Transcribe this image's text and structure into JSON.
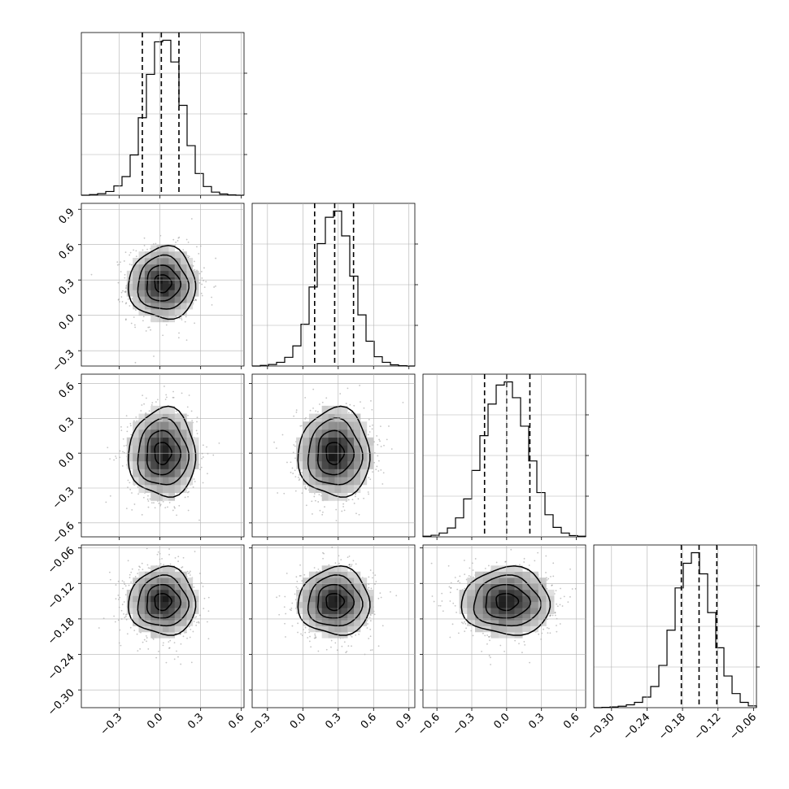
{
  "chart_data": {
    "type": "scatter",
    "description_kind": "corner",
    "grid": true,
    "parameters": [
      {
        "ticks": [
          -0.3,
          0.0,
          0.3,
          0.6
        ],
        "tick_labels": [
          "−0.3",
          "0.0",
          "0.3",
          "0.6"
        ],
        "range": [
          -0.58,
          0.62
        ],
        "mean": 0.02,
        "sd": 0.13,
        "quantiles": [
          -0.13,
          0.01,
          0.14
        ]
      },
      {
        "ticks": [
          -0.3,
          0.0,
          0.3,
          0.6,
          0.9
        ],
        "tick_labels": [
          "−0.3",
          "0.0",
          "0.3",
          "0.6",
          "0.9"
        ],
        "range": [
          -0.43,
          0.95
        ],
        "mean": 0.27,
        "sd": 0.16,
        "quantiles": [
          0.1,
          0.27,
          0.43
        ]
      },
      {
        "ticks": [
          -0.6,
          -0.3,
          0.0,
          0.3,
          0.6
        ],
        "tick_labels": [
          "−0.6",
          "−0.3",
          "0.0",
          "0.3",
          "0.6"
        ],
        "range": [
          -0.72,
          0.68
        ],
        "mean": 0.0,
        "sd": 0.2,
        "quantiles": [
          -0.19,
          0.0,
          0.2
        ]
      },
      {
        "ticks": [
          -0.3,
          -0.24,
          -0.18,
          -0.12,
          -0.06
        ],
        "tick_labels": [
          "−0.30",
          "−0.24",
          "−0.18",
          "−0.12",
          "−0.06"
        ],
        "range": [
          -0.33,
          -0.055
        ],
        "mean": -0.151,
        "sd": 0.03,
        "quantiles": [
          -0.182,
          -0.152,
          -0.122
        ]
      }
    ],
    "histograms": [
      {
        "param": 0,
        "bin_edges": [
          -0.58,
          -0.52,
          -0.46,
          -0.4,
          -0.34,
          -0.28,
          -0.22,
          -0.16,
          -0.1,
          -0.04,
          0.02,
          0.08,
          0.14,
          0.2,
          0.26,
          0.32,
          0.38,
          0.44,
          0.5,
          0.56,
          0.62
        ],
        "counts": [
          0,
          2,
          5,
          12,
          30,
          60,
          130,
          250,
          390,
          495,
          500,
          430,
          290,
          160,
          70,
          28,
          10,
          4,
          1,
          0
        ]
      },
      {
        "param": 1,
        "bin_edges": [
          -0.43,
          -0.361,
          -0.292,
          -0.223,
          -0.154,
          -0.085,
          -0.016,
          0.053,
          0.122,
          0.191,
          0.26,
          0.329,
          0.398,
          0.467,
          0.536,
          0.605,
          0.674,
          0.743,
          0.812,
          0.881,
          0.95
        ],
        "counts": [
          0,
          2,
          5,
          12,
          28,
          65,
          135,
          255,
          395,
          480,
          500,
          420,
          290,
          165,
          80,
          30,
          12,
          4,
          1,
          0
        ]
      },
      {
        "param": 2,
        "bin_edges": [
          -0.72,
          -0.65,
          -0.58,
          -0.51,
          -0.44,
          -0.37,
          -0.3,
          -0.23,
          -0.16,
          -0.09,
          -0.02,
          0.05,
          0.12,
          0.19,
          0.26,
          0.33,
          0.4,
          0.47,
          0.54,
          0.61,
          0.68
        ],
        "counts": [
          2,
          5,
          12,
          28,
          60,
          120,
          210,
          320,
          420,
          480,
          490,
          440,
          350,
          240,
          140,
          70,
          30,
          12,
          4,
          2
        ]
      },
      {
        "param": 3,
        "bin_edges": [
          -0.33,
          -0.31625,
          -0.3025,
          -0.28875,
          -0.275,
          -0.26125,
          -0.2475,
          -0.23375,
          -0.22,
          -0.20625,
          -0.1925,
          -0.17875,
          -0.165,
          -0.15125,
          -0.1375,
          -0.12375,
          -0.11,
          -0.09625,
          -0.0825,
          -0.06875,
          -0.055
        ],
        "counts": [
          0,
          1,
          2,
          4,
          8,
          15,
          30,
          60,
          120,
          220,
          340,
          410,
          440,
          380,
          270,
          170,
          90,
          40,
          15,
          5
        ]
      }
    ],
    "pairs": [
      {
        "x_param": 0,
        "y_param": 1,
        "rho": 0.0
      },
      {
        "x_param": 0,
        "y_param": 2,
        "rho": 0.0
      },
      {
        "x_param": 1,
        "y_param": 2,
        "rho": 0.0
      },
      {
        "x_param": 0,
        "y_param": 3,
        "rho": 0.0
      },
      {
        "x_param": 1,
        "y_param": 3,
        "rho": 0.0
      },
      {
        "x_param": 2,
        "y_param": 3,
        "rho": 0.0
      }
    ],
    "contour_levels_sigma": [
      0.5,
      1.0,
      1.5,
      2.0
    ],
    "point_color": "#555555",
    "line_color": "#000000",
    "grid_color": "#b0b0b0"
  }
}
